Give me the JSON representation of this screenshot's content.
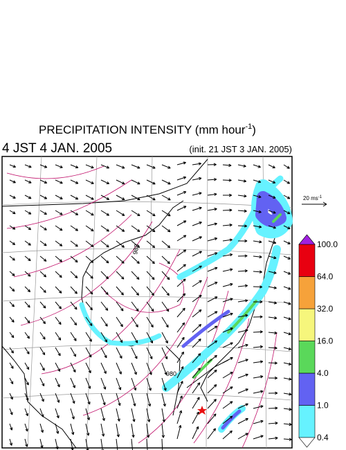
{
  "header": {
    "title": {
      "main": "PRECIPITATION INTENSITY (mm hour",
      "exponent": "-1",
      "closing": ")"
    },
    "valid_time": "4 JST 4 JAN. 2005",
    "init_time": "(init. 21 JST 3 JAN. 2005)"
  },
  "reference_vector": {
    "label": "20 ms",
    "exponent": "-1"
  },
  "contour_labels": [
    "988",
    "980"
  ],
  "colorbar": {
    "levels": [
      "0.4",
      "1.0",
      "4.0",
      "16.0",
      "32.0",
      "64.0",
      "100.0"
    ],
    "colors": [
      "#66f2ff",
      "#6262f2",
      "#5ad85a",
      "#f6f67c",
      "#f6a23a",
      "#e80010"
    ],
    "over_color": "#a020e0",
    "under_color": "#ffffff"
  }
}
